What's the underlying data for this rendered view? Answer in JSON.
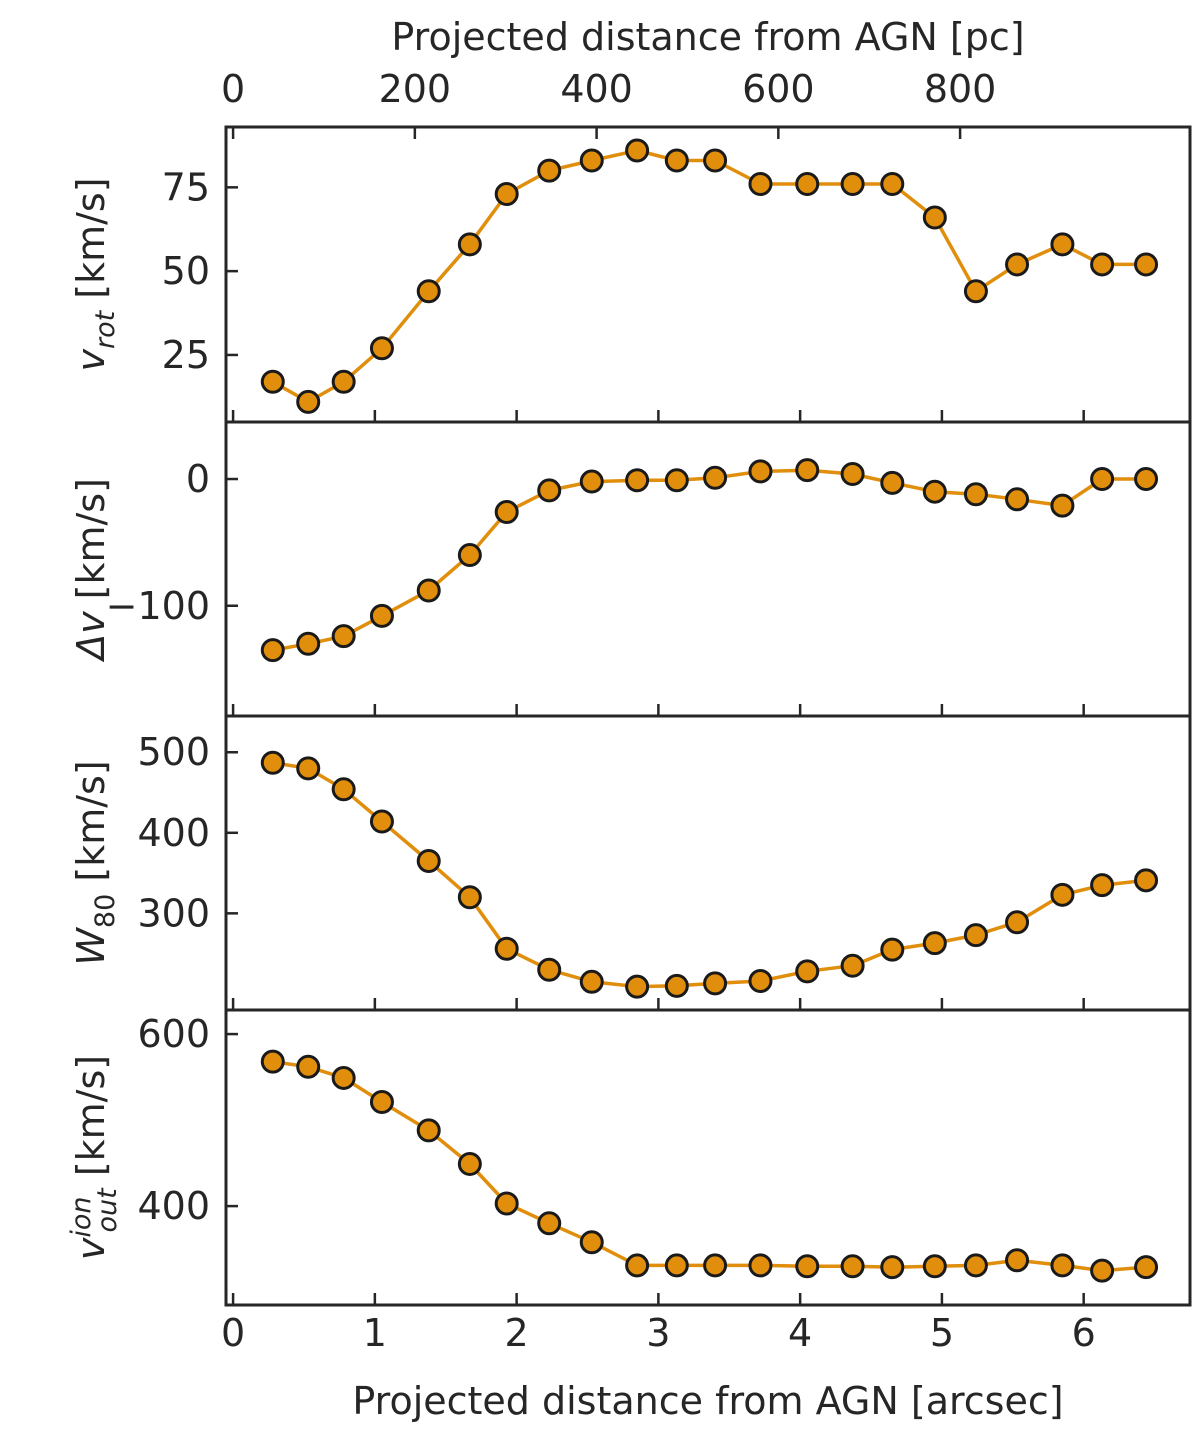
{
  "chart_data": {
    "type": "line",
    "marker_color": "#e08e0b",
    "line_color": "#e08e0b",
    "edge_color": "#1a1a1a",
    "axis_color": "#262626",
    "x": [
      0.28,
      0.53,
      0.78,
      1.05,
      1.38,
      1.67,
      1.93,
      2.23,
      2.53,
      2.85,
      3.13,
      3.4,
      3.72,
      4.05,
      4.37,
      4.65,
      4.95,
      5.24,
      5.53,
      5.85,
      6.13,
      6.44
    ],
    "xlabel_bottom": "Projected distance from AGN [arcsec]",
    "xlim_bottom": [
      -0.05,
      6.75
    ],
    "xticks_bottom": [
      0,
      1,
      2,
      3,
      4,
      5,
      6
    ],
    "xlabel_top": "Projected distance from AGN [pc]",
    "xlim_top": [
      -7.8,
      1053
    ],
    "xticks_top": [
      0,
      200,
      400,
      600,
      800
    ],
    "grid": false,
    "panels": [
      {
        "ylabel_main": "v",
        "ylabel_sub": "rot",
        "ylabel_unit": " [km/s]",
        "ylim": [
          5,
          93
        ],
        "yticks": [
          25,
          50,
          75
        ],
        "ytick_labels": [
          "25",
          "50",
          "75"
        ],
        "values": [
          17,
          11,
          17,
          27,
          44,
          58,
          73,
          80,
          83,
          86,
          83,
          83,
          76,
          76,
          76,
          76,
          66,
          44,
          52,
          58,
          52,
          52
        ]
      },
      {
        "ylabel_main": "Δv",
        "ylabel_sub": "",
        "ylabel_unit": " [km/s]",
        "ylim": [
          -187,
          45
        ],
        "yticks": [
          -100,
          0
        ],
        "ytick_labels": [
          "−100",
          "0"
        ],
        "values": [
          -135,
          -130,
          -124,
          -108,
          -88,
          -60,
          -26,
          -9,
          -2,
          -1,
          -1,
          1,
          6,
          7,
          4,
          -3,
          -10,
          -12,
          -16,
          -21,
          0,
          0
        ]
      },
      {
        "ylabel_main": "W",
        "ylabel_sub": "80",
        "ylabel_unit": " [km/s]",
        "ylim": [
          180,
          545
        ],
        "yticks": [
          300,
          400,
          500
        ],
        "ytick_labels": [
          "300",
          "400",
          "500"
        ],
        "values": [
          487,
          480,
          454,
          414,
          365,
          320,
          256,
          230,
          215,
          209,
          210,
          213,
          216,
          228,
          235,
          255,
          263,
          273,
          289,
          323,
          335,
          341
        ]
      },
      {
        "ylabel_main": "v",
        "ylabel_sub": "out",
        "ylabel_sup": "ion",
        "ylabel_unit": " [km/s]",
        "ylim": [
          285,
          628
        ],
        "yticks": [
          400,
          600
        ],
        "ytick_labels": [
          "400",
          "600"
        ],
        "values": [
          568,
          562,
          549,
          521,
          488,
          449,
          403,
          380,
          358,
          331,
          331,
          331,
          331,
          330,
          330,
          329,
          330,
          331,
          337,
          331,
          325,
          329
        ]
      }
    ]
  }
}
